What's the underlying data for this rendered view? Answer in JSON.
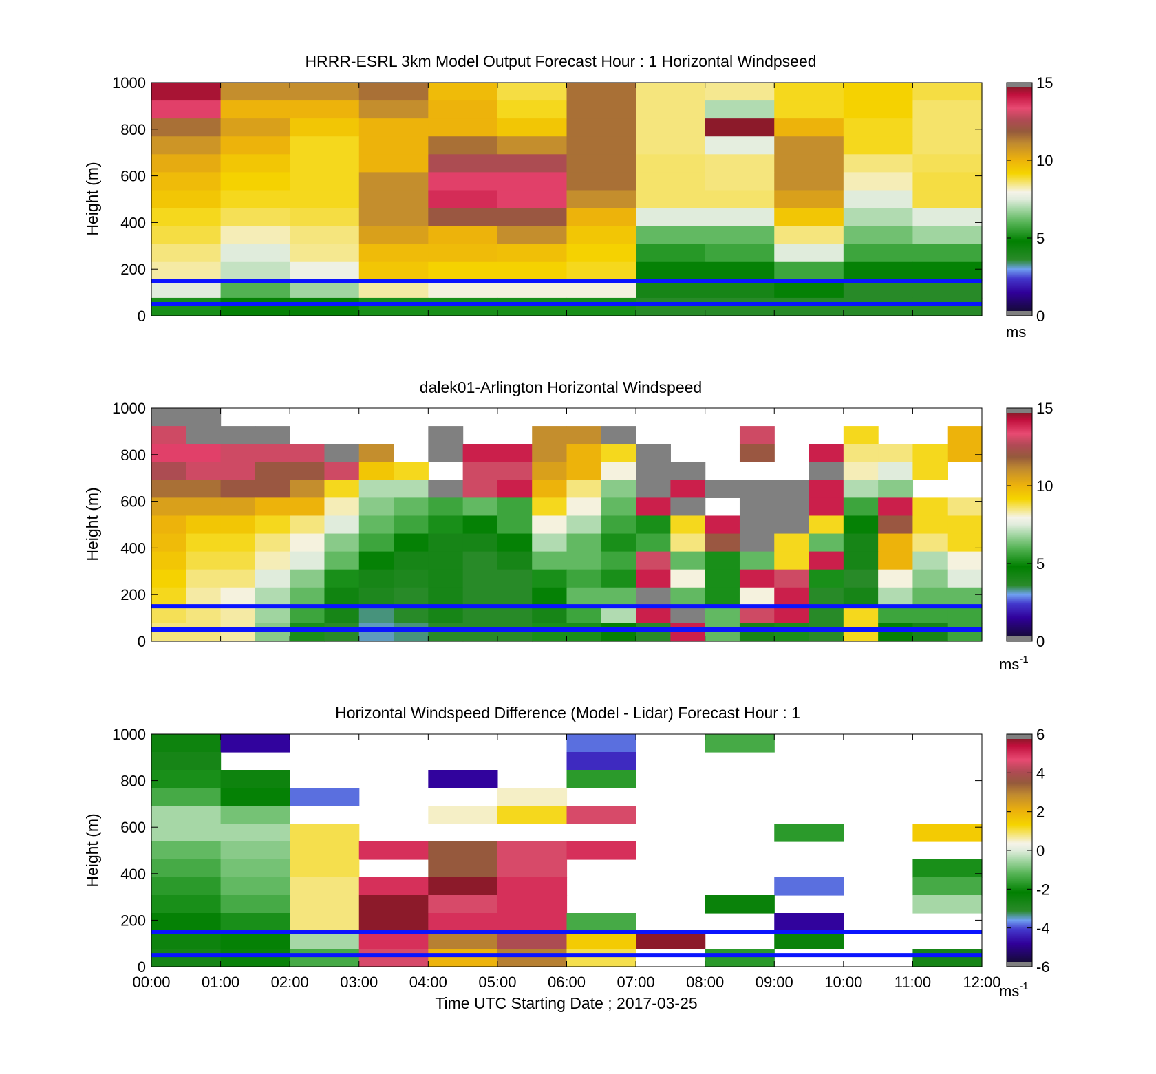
{
  "figure": {
    "xlabel": "Time UTC  Starting Date ; 2017-03-25",
    "x_ticks": [
      "00:00",
      "01:00",
      "02:00",
      "03:00",
      "04:00",
      "05:00",
      "06:00",
      "07:00",
      "08:00",
      "09:00",
      "10:00",
      "11:00",
      "12:00"
    ]
  },
  "chart_data": [
    {
      "type": "heatmap",
      "title": "HRRR-ESRL 3km Model Output   Forecast Hour : 1 Horizontal Windpseed",
      "ylabel": "Height (m)",
      "ylim": [
        0,
        1000
      ],
      "y_ticks": [
        "1000",
        "800",
        "600",
        "400",
        "200",
        "0"
      ],
      "colorbar": {
        "min": 0,
        "max": 15,
        "ticks": [
          "15",
          "10",
          "5",
          "0"
        ],
        "unit": "ms"
      },
      "reference_lines_m": [
        150,
        50
      ],
      "columns_hours": [
        0,
        1,
        2,
        3,
        4,
        5,
        6,
        7,
        8,
        9,
        10,
        11
      ],
      "values": [
        [
          14.6,
          11,
          11,
          11.5,
          9.8,
          8.8,
          11.5,
          8.5,
          8.4,
          9,
          9.2,
          8.8
        ],
        [
          13.5,
          10,
          10,
          11,
          10,
          9,
          11.5,
          8.5,
          7,
          9,
          9.2,
          8.6
        ],
        [
          11.5,
          10.5,
          9.5,
          10,
          10,
          9.5,
          11.5,
          8.5,
          15,
          10,
          9,
          8.6
        ],
        [
          10.8,
          10,
          9,
          10,
          11.5,
          11,
          11.5,
          8.5,
          7.6,
          11,
          9,
          8.6
        ],
        [
          10.2,
          9.5,
          9,
          10,
          12.5,
          12.5,
          11.5,
          8.6,
          8.5,
          11,
          8.5,
          8.7
        ],
        [
          9.8,
          9.2,
          9,
          11,
          13.5,
          13.5,
          11.5,
          8.6,
          8.5,
          11,
          8.2,
          8.8
        ],
        [
          9.5,
          9,
          9,
          11,
          13.8,
          13.5,
          11,
          8.6,
          8.6,
          10.5,
          7.5,
          8.8
        ],
        [
          9,
          8.7,
          8.8,
          11,
          12,
          12,
          10,
          7.5,
          7.5,
          9.5,
          7,
          7.5
        ],
        [
          8.8,
          8.2,
          8.5,
          10.5,
          10,
          11,
          9.5,
          6,
          6,
          8.5,
          6.2,
          6.8
        ],
        [
          8.5,
          7.5,
          8.4,
          9.8,
          9.8,
          9.7,
          9.2,
          5.2,
          5.5,
          7.5,
          5.5,
          5.5
        ],
        [
          8.3,
          7.2,
          7.8,
          9.5,
          9.2,
          9.2,
          9,
          4.5,
          4.5,
          5.5,
          4.5,
          4.7
        ],
        [
          7.5,
          5.8,
          6.8,
          8.3,
          8,
          8,
          8,
          4,
          4,
          4.5,
          3.5,
          3.5
        ],
        [
          5,
          4.5,
          4.5,
          5,
          5,
          5,
          5,
          3.5,
          3.5,
          3.5,
          3.5,
          3.5
        ]
      ]
    },
    {
      "type": "heatmap",
      "title": "dalek01-Arlington  Horizontal Windspeed",
      "ylabel": "Height (m)",
      "ylim": [
        0,
        1000
      ],
      "y_ticks": [
        "1000",
        "800",
        "600",
        "400",
        "200",
        "0"
      ],
      "colorbar": {
        "min": 0,
        "max": 15,
        "ticks": [
          "15",
          "10",
          "5",
          "0"
        ],
        "unit": "ms",
        "unit_exponent": "-1"
      },
      "reference_lines_m": [
        150,
        50
      ],
      "columns_hours": [
        0,
        0.5,
        1,
        1.5,
        2,
        2.5,
        3,
        3.5,
        4,
        4.5,
        5,
        5.5,
        6,
        6.5,
        7,
        7.5,
        8,
        8.5,
        9,
        9.5,
        10,
        10.5,
        11,
        11.5
      ],
      "values": [
        [
          16,
          16,
          null,
          null,
          null,
          null,
          null,
          null,
          null,
          null,
          null,
          null,
          null,
          null,
          null,
          null,
          null,
          null,
          null,
          null,
          null,
          null,
          null,
          null
        ],
        [
          13,
          16,
          16,
          16,
          null,
          null,
          null,
          null,
          16,
          null,
          null,
          11,
          11,
          16,
          null,
          null,
          null,
          13,
          null,
          null,
          9,
          null,
          null,
          10
        ],
        [
          13.5,
          13.5,
          13,
          13,
          13,
          16,
          11,
          null,
          16,
          14,
          14,
          11,
          10,
          9,
          16,
          null,
          null,
          12,
          null,
          14,
          8.5,
          8.5,
          9,
          10
        ],
        [
          12.5,
          13,
          13,
          12,
          12,
          13,
          9.5,
          9,
          null,
          13,
          13,
          10.5,
          10,
          8,
          16,
          16,
          null,
          null,
          null,
          16,
          8.2,
          7.5,
          9,
          null
        ],
        [
          11.5,
          11.5,
          12,
          12,
          11,
          9,
          7,
          7,
          16,
          13,
          14,
          10,
          8.5,
          6.5,
          16,
          14,
          16,
          16,
          16,
          14,
          7,
          6.5,
          null,
          null
        ],
        [
          10.5,
          10.5,
          10.5,
          10,
          10,
          8.2,
          6.5,
          6,
          5.5,
          6,
          5.5,
          9,
          8,
          6,
          14,
          16,
          null,
          16,
          16,
          14,
          5.5,
          14,
          9,
          8.5
        ],
        [
          10,
          9.5,
          9.5,
          9,
          8.5,
          7.5,
          6,
          5.5,
          5,
          4.5,
          5.5,
          8,
          7,
          5.5,
          5,
          9,
          14,
          16,
          16,
          9,
          4.5,
          12,
          9,
          9
        ],
        [
          9.8,
          9,
          9,
          8.5,
          8,
          6.5,
          5.5,
          4.5,
          4,
          4,
          4.5,
          7,
          6,
          5,
          5.5,
          8.5,
          12,
          16,
          9,
          6,
          4,
          10,
          8.5,
          9
        ],
        [
          9.5,
          8.8,
          8.8,
          8.2,
          7.5,
          6,
          4.5,
          4,
          4,
          3.5,
          4,
          6,
          6,
          5.5,
          13,
          6,
          5,
          6,
          9,
          14,
          4,
          10,
          7,
          8
        ],
        [
          9.2,
          8.5,
          8.5,
          7.5,
          6.5,
          5,
          4,
          3.8,
          4,
          3.5,
          3.5,
          5,
          5.5,
          5,
          14,
          8,
          5,
          14,
          13,
          5,
          3.5,
          8,
          6.5,
          7.5
        ],
        [
          9,
          8.3,
          8,
          7,
          6,
          4.2,
          3.8,
          3.5,
          4,
          3.5,
          3.5,
          4.5,
          6,
          6,
          16,
          6,
          5,
          8,
          14,
          3.5,
          4,
          7,
          6,
          6
        ],
        [
          8.7,
          8.5,
          8.3,
          6.8,
          5.5,
          4,
          3.2,
          3.5,
          4,
          3.5,
          3.5,
          4,
          5.5,
          7,
          14,
          16,
          6,
          13,
          14,
          3.5,
          9,
          5.5,
          5.5,
          5.5
        ],
        [
          8.5,
          8.5,
          8.3,
          6.5,
          5,
          3.5,
          3,
          3.2,
          3.5,
          3.5,
          3.5,
          5,
          5,
          4.5,
          3.5,
          14,
          6,
          4,
          5,
          3.5,
          9,
          4.5,
          4,
          5.5
        ]
      ]
    },
    {
      "type": "heatmap",
      "title": "Horizontal Windspeed Difference (Model - Lidar) Forecast Hour : 1",
      "ylabel": "Height (m)",
      "ylim": [
        0,
        1000
      ],
      "y_ticks": [
        "1000",
        "800",
        "600",
        "400",
        "200",
        "0"
      ],
      "colorbar": {
        "min": -6,
        "max": 6,
        "ticks": [
          "6",
          "4",
          "2",
          "0",
          "-2",
          "-4",
          "-6"
        ],
        "unit": "ms",
        "unit_exponent": "-1"
      },
      "reference_lines_m": [
        150,
        50
      ],
      "columns_hours": [
        0,
        1,
        2,
        3,
        4,
        5,
        6,
        7,
        8,
        9,
        10,
        11
      ],
      "values": [
        [
          -2.6,
          -5,
          null,
          null,
          null,
          null,
          -4,
          null,
          -1.5,
          null,
          null,
          null
        ],
        [
          -2.8,
          null,
          null,
          null,
          null,
          null,
          -4.5,
          null,
          null,
          null,
          null,
          null
        ],
        [
          -2,
          -2.6,
          null,
          null,
          -5,
          null,
          -1.8,
          null,
          null,
          null,
          null,
          null
        ],
        [
          -1.5,
          -2.4,
          -4,
          null,
          null,
          0.5,
          null,
          null,
          null,
          null,
          null,
          null
        ],
        [
          -0.5,
          -1,
          null,
          null,
          0.5,
          1.2,
          4.5,
          null,
          null,
          null,
          null,
          null
        ],
        [
          -0.5,
          -0.5,
          1,
          null,
          null,
          null,
          null,
          null,
          null,
          -1.8,
          null,
          1.5
        ],
        [
          -1.2,
          -0.8,
          1,
          5,
          3.5,
          4.5,
          5,
          null,
          null,
          null,
          null,
          null
        ],
        [
          -1.5,
          -1,
          1,
          null,
          3.5,
          4.5,
          null,
          null,
          null,
          null,
          null,
          -2
        ],
        [
          -1.8,
          -1.2,
          0.8,
          5,
          6,
          5,
          null,
          null,
          null,
          -4,
          null,
          -1.5
        ],
        [
          -2,
          -1.5,
          0.8,
          6,
          4.5,
          5,
          null,
          null,
          -2.5,
          null,
          null,
          -0.5
        ],
        [
          -2.4,
          -2,
          0.8,
          6,
          5,
          5,
          -1.5,
          null,
          null,
          -5,
          null,
          null
        ],
        [
          -2.6,
          -2.4,
          -0.5,
          5,
          3,
          4,
          1.5,
          6,
          null,
          -2.5,
          null,
          null
        ],
        [
          -2.8,
          -2.5,
          -1.5,
          4.5,
          2,
          3,
          1,
          null,
          -1.8,
          null,
          null,
          -2.8
        ]
      ]
    }
  ]
}
